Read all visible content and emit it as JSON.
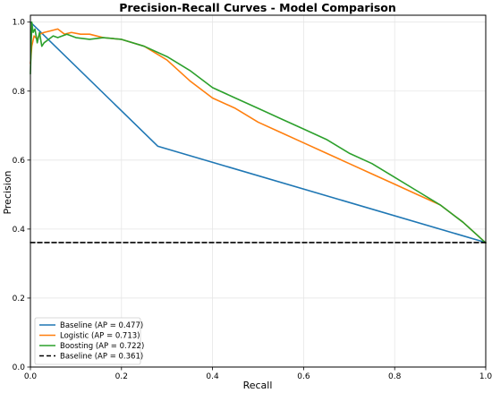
{
  "chart_data": {
    "type": "line",
    "title": "Precision-Recall Curves - Model Comparison",
    "xlabel": "Recall",
    "ylabel": "Precision",
    "xlim": [
      0.0,
      1.0
    ],
    "ylim": [
      0.0,
      1.02
    ],
    "xticks": [
      "0.0",
      "0.2",
      "0.4",
      "0.6",
      "0.8",
      "1.0"
    ],
    "yticks": [
      "0.0",
      "0.2",
      "0.4",
      "0.6",
      "0.8",
      "1.0"
    ],
    "grid": true,
    "legend_position": "lower-left",
    "series": [
      {
        "name": "Baseline (AP = 0.477)",
        "color": "#1f77b4",
        "dash": "solid",
        "x": [
          0.0,
          0.28,
          1.0
        ],
        "y": [
          1.0,
          0.64,
          0.361
        ]
      },
      {
        "name": "Logistic (AP = 0.713)",
        "color": "#ff7f0e",
        "dash": "solid",
        "x": [
          0.0,
          0.003,
          0.008,
          0.015,
          0.02,
          0.03,
          0.045,
          0.06,
          0.075,
          0.09,
          0.11,
          0.13,
          0.16,
          0.2,
          0.25,
          0.3,
          0.35,
          0.4,
          0.45,
          0.5,
          0.55,
          0.6,
          0.65,
          0.7,
          0.75,
          0.8,
          0.85,
          0.9,
          0.95,
          1.0
        ],
        "y": [
          0.88,
          0.93,
          0.96,
          0.95,
          0.965,
          0.97,
          0.975,
          0.98,
          0.965,
          0.97,
          0.965,
          0.965,
          0.955,
          0.95,
          0.93,
          0.89,
          0.83,
          0.78,
          0.75,
          0.71,
          0.68,
          0.65,
          0.62,
          0.59,
          0.56,
          0.53,
          0.5,
          0.47,
          0.42,
          0.36
        ]
      },
      {
        "name": "Boosting (AP = 0.722)",
        "color": "#2ca02c",
        "dash": "solid",
        "x": [
          0.0,
          0.003,
          0.006,
          0.01,
          0.015,
          0.02,
          0.025,
          0.03,
          0.04,
          0.05,
          0.06,
          0.08,
          0.1,
          0.13,
          0.16,
          0.2,
          0.25,
          0.3,
          0.35,
          0.4,
          0.45,
          0.5,
          0.55,
          0.6,
          0.65,
          0.7,
          0.75,
          0.8,
          0.85,
          0.9,
          0.95,
          1.0
        ],
        "y": [
          0.85,
          1.0,
          0.97,
          0.98,
          0.94,
          0.97,
          0.93,
          0.94,
          0.95,
          0.96,
          0.955,
          0.965,
          0.955,
          0.95,
          0.955,
          0.95,
          0.93,
          0.9,
          0.86,
          0.81,
          0.78,
          0.75,
          0.72,
          0.69,
          0.66,
          0.62,
          0.59,
          0.55,
          0.51,
          0.47,
          0.42,
          0.36
        ]
      },
      {
        "name": "Baseline (AP = 0.361)",
        "color": "#000000",
        "dash": "dashed",
        "x": [
          0.0,
          1.0
        ],
        "y": [
          0.361,
          0.361
        ]
      }
    ]
  }
}
